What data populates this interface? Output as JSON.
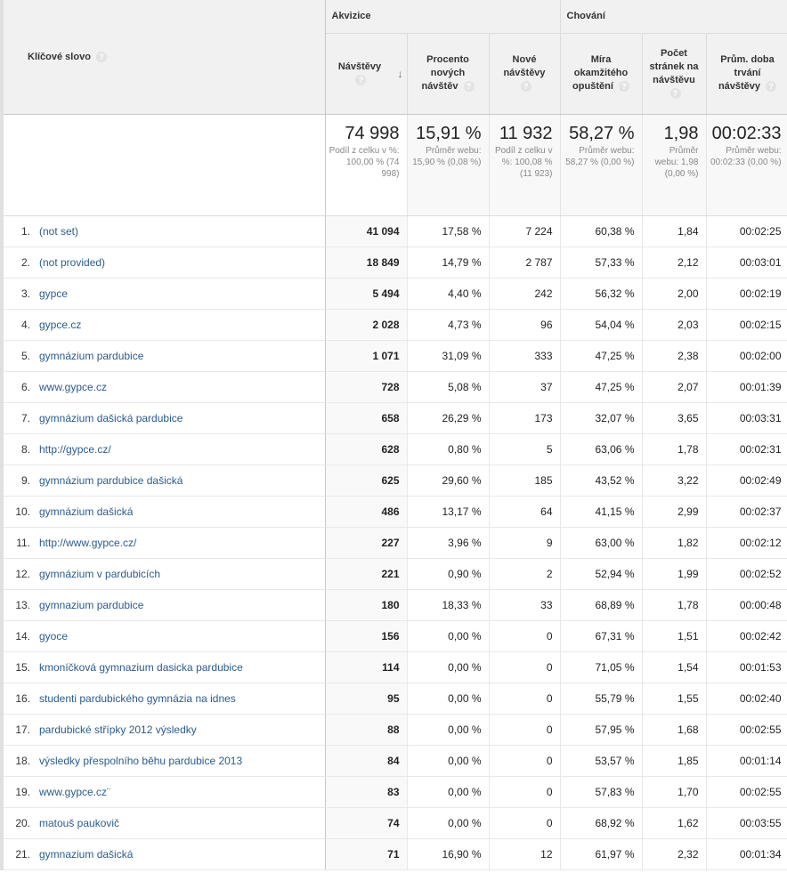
{
  "header": {
    "keyword_label": "Klíčové slovo",
    "group_acquisition": "Akvizice",
    "group_behavior": "Chování",
    "help_glyph": "?",
    "sort_glyph": "↓",
    "col_visits": "Návštěvy",
    "col_new_pct": "Procento nových návštěv",
    "col_new_visits": "Nové návštěvy",
    "col_bounce": "Míra okamžitého opuštění",
    "col_pages": "Počet stránek na návštěvu",
    "col_duration": "Prům. doba trvání návštěvy"
  },
  "totals": {
    "visits": {
      "value": "74 998",
      "sub": "Podíl z celku v %: 100,00 % (74 998)"
    },
    "new_pct": {
      "value": "15,91 %",
      "sub": "Průměr webu: 15,90 % (0,08 %)"
    },
    "new_visits": {
      "value": "11 932",
      "sub": "Podíl z celku v %: 100,08 % (11 923)"
    },
    "bounce": {
      "value": "58,27 %",
      "sub": "Průměr webu: 58,27 % (0,00 %)"
    },
    "pages": {
      "value": "1,98",
      "sub": "Průměr webu: 1,98 (0,00 %)"
    },
    "duration": {
      "value": "00:02:33",
      "sub": "Průměr webu: 00:02:33 (0,00 %)"
    }
  },
  "rows": [
    {
      "idx": "1.",
      "kw": "(not set)",
      "visits": "41 094",
      "new_pct": "17,58 %",
      "new_visits": "7 224",
      "bounce": "60,38 %",
      "pages": "1,84",
      "duration": "00:02:25"
    },
    {
      "idx": "2.",
      "kw": "(not provided)",
      "visits": "18 849",
      "new_pct": "14,79 %",
      "new_visits": "2 787",
      "bounce": "57,33 %",
      "pages": "2,12",
      "duration": "00:03:01"
    },
    {
      "idx": "3.",
      "kw": "gypce",
      "visits": "5 494",
      "new_pct": "4,40 %",
      "new_visits": "242",
      "bounce": "56,32 %",
      "pages": "2,00",
      "duration": "00:02:19"
    },
    {
      "idx": "4.",
      "kw": "gypce.cz",
      "visits": "2 028",
      "new_pct": "4,73 %",
      "new_visits": "96",
      "bounce": "54,04 %",
      "pages": "2,03",
      "duration": "00:02:15"
    },
    {
      "idx": "5.",
      "kw": "gymnázium pardubice",
      "visits": "1 071",
      "new_pct": "31,09 %",
      "new_visits": "333",
      "bounce": "47,25 %",
      "pages": "2,38",
      "duration": "00:02:00"
    },
    {
      "idx": "6.",
      "kw": "www.gypce.cz",
      "visits": "728",
      "new_pct": "5,08 %",
      "new_visits": "37",
      "bounce": "47,25 %",
      "pages": "2,07",
      "duration": "00:01:39"
    },
    {
      "idx": "7.",
      "kw": "gymnázium dašická pardubice",
      "visits": "658",
      "new_pct": "26,29 %",
      "new_visits": "173",
      "bounce": "32,07 %",
      "pages": "3,65",
      "duration": "00:03:31"
    },
    {
      "idx": "8.",
      "kw": "http://gypce.cz/",
      "visits": "628",
      "new_pct": "0,80 %",
      "new_visits": "5",
      "bounce": "63,06 %",
      "pages": "1,78",
      "duration": "00:02:31"
    },
    {
      "idx": "9.",
      "kw": "gymnázium pardubice dašická",
      "visits": "625",
      "new_pct": "29,60 %",
      "new_visits": "185",
      "bounce": "43,52 %",
      "pages": "3,22",
      "duration": "00:02:49"
    },
    {
      "idx": "10.",
      "kw": "gymnázium dašická",
      "visits": "486",
      "new_pct": "13,17 %",
      "new_visits": "64",
      "bounce": "41,15 %",
      "pages": "2,99",
      "duration": "00:02:37"
    },
    {
      "idx": "11.",
      "kw": "http://www.gypce.cz/",
      "visits": "227",
      "new_pct": "3,96 %",
      "new_visits": "9",
      "bounce": "63,00 %",
      "pages": "1,82",
      "duration": "00:02:12"
    },
    {
      "idx": "12.",
      "kw": "gymnázium v pardubicích",
      "visits": "221",
      "new_pct": "0,90 %",
      "new_visits": "2",
      "bounce": "52,94 %",
      "pages": "1,99",
      "duration": "00:02:52"
    },
    {
      "idx": "13.",
      "kw": "gymnazium pardubice",
      "visits": "180",
      "new_pct": "18,33 %",
      "new_visits": "33",
      "bounce": "68,89 %",
      "pages": "1,78",
      "duration": "00:00:48"
    },
    {
      "idx": "14.",
      "kw": "gyoce",
      "visits": "156",
      "new_pct": "0,00 %",
      "new_visits": "0",
      "bounce": "67,31 %",
      "pages": "1,51",
      "duration": "00:02:42"
    },
    {
      "idx": "15.",
      "kw": "kmoníčková gymnazium dasicka pardubice",
      "visits": "114",
      "new_pct": "0,00 %",
      "new_visits": "0",
      "bounce": "71,05 %",
      "pages": "1,54",
      "duration": "00:01:53"
    },
    {
      "idx": "16.",
      "kw": "studenti pardubického gymnázia na idnes",
      "visits": "95",
      "new_pct": "0,00 %",
      "new_visits": "0",
      "bounce": "55,79 %",
      "pages": "1,55",
      "duration": "00:02:40"
    },
    {
      "idx": "17.",
      "kw": "pardubické střípky 2012 výsledky",
      "visits": "88",
      "new_pct": "0,00 %",
      "new_visits": "0",
      "bounce": "57,95 %",
      "pages": "1,68",
      "duration": "00:02:55"
    },
    {
      "idx": "18.",
      "kw": "výsledky přespolního běhu pardubice 2013",
      "visits": "84",
      "new_pct": "0,00 %",
      "new_visits": "0",
      "bounce": "53,57 %",
      "pages": "1,85",
      "duration": "00:01:14"
    },
    {
      "idx": "19.",
      "kw": "www.gypce.cz¨",
      "visits": "83",
      "new_pct": "0,00 %",
      "new_visits": "0",
      "bounce": "57,83 %",
      "pages": "1,70",
      "duration": "00:02:55"
    },
    {
      "idx": "20.",
      "kw": "matouš paukovič",
      "visits": "74",
      "new_pct": "0,00 %",
      "new_visits": "0",
      "bounce": "68,92 %",
      "pages": "1,62",
      "duration": "00:03:55"
    },
    {
      "idx": "21.",
      "kw": "gymnazium dašická",
      "visits": "71",
      "new_pct": "16,90 %",
      "new_visits": "12",
      "bounce": "61,97 %",
      "pages": "2,32",
      "duration": "00:01:34"
    }
  ]
}
